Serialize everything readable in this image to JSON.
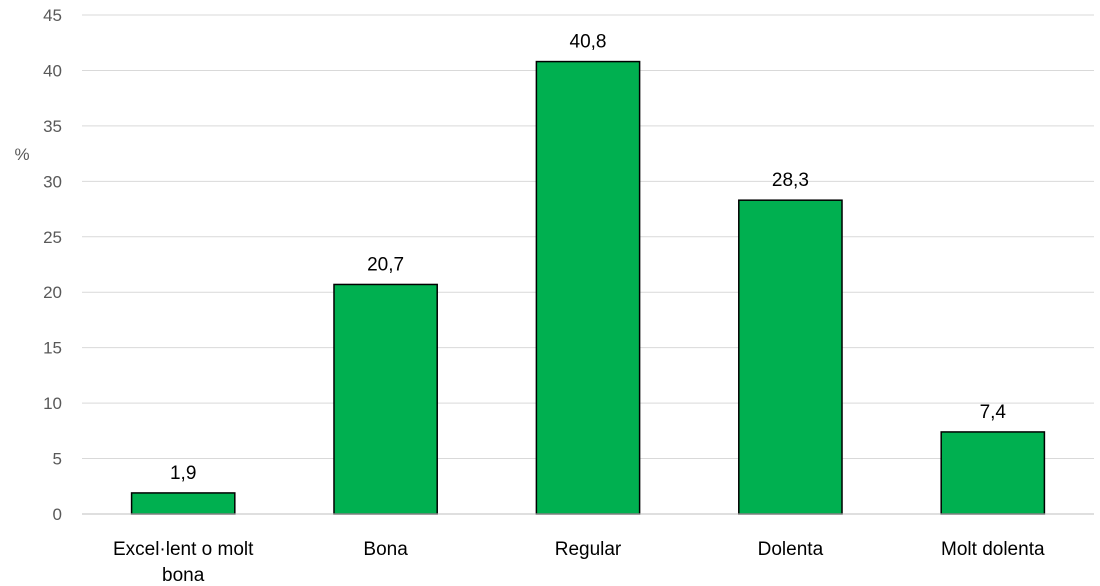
{
  "chart_data": {
    "type": "bar",
    "categories": [
      "Excel·lent o molt bona",
      "Bona",
      "Regular",
      "Dolenta",
      "Molt dolenta"
    ],
    "category_lines": [
      [
        "Excel·lent o molt",
        "bona"
      ],
      [
        "Bona"
      ],
      [
        "Regular"
      ],
      [
        "Dolenta"
      ],
      [
        "Molt dolenta"
      ]
    ],
    "values": [
      1.9,
      20.7,
      40.8,
      28.3,
      7.4
    ],
    "data_labels": [
      "1,9",
      "20,7",
      "40,8",
      "28,3",
      "7,4"
    ],
    "title": "",
    "xlabel": "",
    "ylabel": "%",
    "ylim": [
      0,
      45
    ],
    "yticks": [
      0,
      5,
      10,
      15,
      20,
      25,
      30,
      35,
      40,
      45
    ],
    "grid": true,
    "legend": "none",
    "bar_color": "#00b050",
    "bar_edge_color": "#000000"
  }
}
